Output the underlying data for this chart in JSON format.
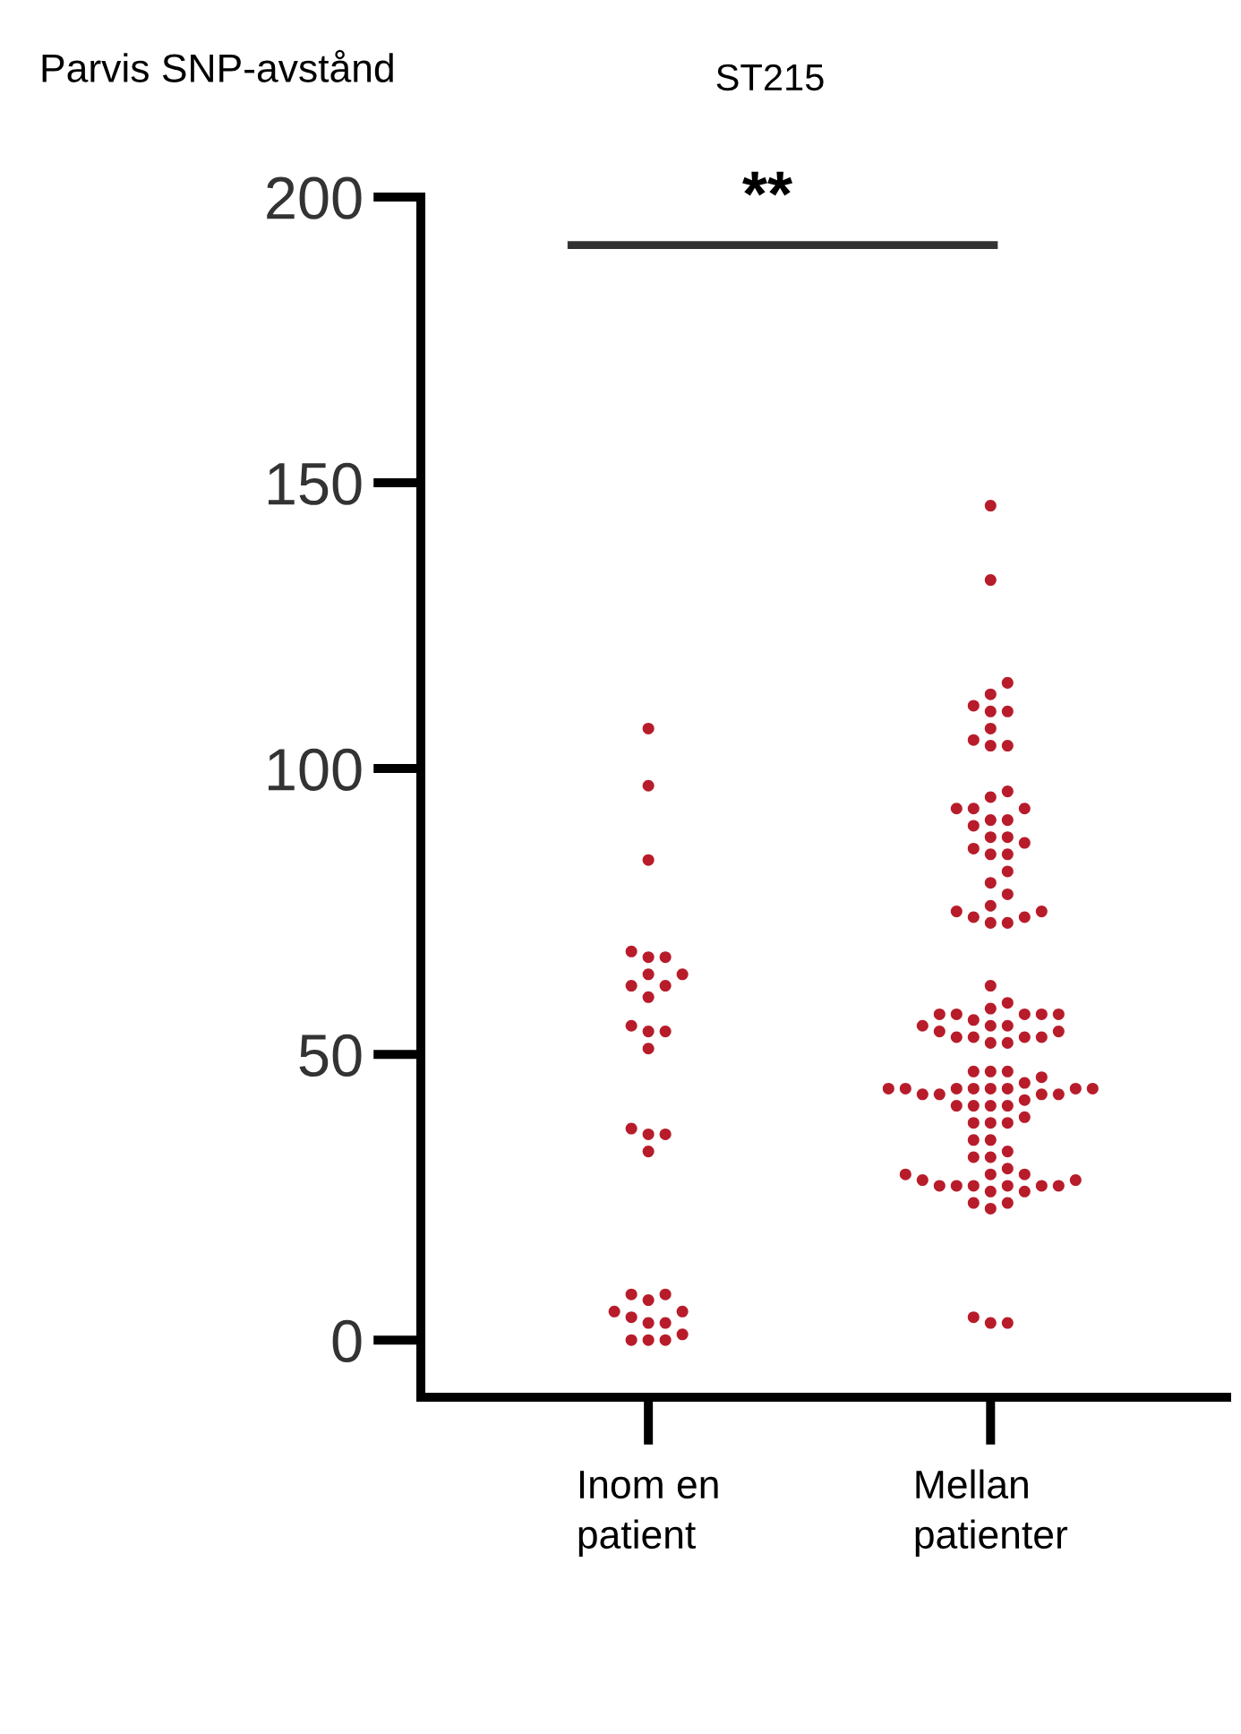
{
  "chart_data": {
    "type": "scatter",
    "title": "ST215",
    "ylabel": "Parvis SNP-avstånd",
    "categories": [
      "Inom en\npatient",
      "Mellan\npatienter"
    ],
    "series": [
      {
        "color": "#b81c2a",
        "x": [
          "Inom en\npatient",
          "Inom en\npatient",
          "Inom en\npatient",
          "Inom en\npatient",
          "Inom en\npatient",
          "Inom en\npatient",
          "Inom en\npatient",
          "Inom en\npatient",
          "Inom en\npatient",
          "Inom en\npatient",
          "Inom en\npatient",
          "Inom en\npatient",
          "Inom en\npatient",
          "Inom en\npatient",
          "Inom en\npatient",
          "Inom en\npatient",
          "Inom en\npatient",
          "Inom en\npatient",
          "Inom en\npatient",
          "Inom en\npatient",
          "Inom en\npatient",
          "Inom en\npatient",
          "Inom en\npatient",
          "Inom en\npatient",
          "Inom en\npatient",
          "Inom en\npatient",
          "Inom en\npatient",
          "Inom en\npatient",
          "Inom en\npatient",
          "Inom en\npatient",
          "Inom en\npatient"
        ],
        "values": [
          107,
          97,
          84,
          68,
          67,
          67,
          64,
          64,
          62,
          62,
          60,
          54,
          54,
          55,
          51,
          37,
          36,
          36,
          33,
          7,
          8,
          8,
          3,
          5,
          4,
          5,
          3,
          0,
          1,
          0,
          0
        ]
      },
      {
        "color": "#b81c2a",
        "x": [
          "Mellan\npatienter",
          "Mellan\npatienter",
          "Mellan\npatienter",
          "Mellan\npatienter",
          "Mellan\npatienter",
          "Mellan\npatienter",
          "Mellan\npatienter",
          "Mellan\npatienter",
          "Mellan\npatienter",
          "Mellan\npatienter",
          "Mellan\npatienter",
          "Mellan\npatienter",
          "Mellan\npatienter",
          "Mellan\npatienter",
          "Mellan\npatienter",
          "Mellan\npatienter",
          "Mellan\npatienter",
          "Mellan\npatienter",
          "Mellan\npatienter",
          "Mellan\npatienter",
          "Mellan\npatienter",
          "Mellan\npatienter",
          "Mellan\npatienter",
          "Mellan\npatienter",
          "Mellan\npatienter",
          "Mellan\npatienter",
          "Mellan\npatienter",
          "Mellan\npatienter",
          "Mellan\npatienter",
          "Mellan\npatienter",
          "Mellan\npatienter",
          "Mellan\npatienter",
          "Mellan\npatienter",
          "Mellan\npatienter",
          "Mellan\npatienter",
          "Mellan\npatienter",
          "Mellan\npatienter",
          "Mellan\npatienter",
          "Mellan\npatienter",
          "Mellan\npatienter",
          "Mellan\npatienter",
          "Mellan\npatienter",
          "Mellan\npatienter",
          "Mellan\npatienter",
          "Mellan\npatienter",
          "Mellan\npatienter",
          "Mellan\npatienter",
          "Mellan\npatienter",
          "Mellan\npatienter",
          "Mellan\npatienter",
          "Mellan\npatienter",
          "Mellan\npatienter",
          "Mellan\npatienter",
          "Mellan\npatienter",
          "Mellan\npatienter",
          "Mellan\npatienter",
          "Mellan\npatienter",
          "Mellan\npatienter",
          "Mellan\npatienter",
          "Mellan\npatienter",
          "Mellan\npatienter",
          "Mellan\npatienter",
          "Mellan\npatienter",
          "Mellan\npatienter",
          "Mellan\npatienter",
          "Mellan\npatienter",
          "Mellan\npatienter",
          "Mellan\npatienter",
          "Mellan\npatienter",
          "Mellan\npatienter",
          "Mellan\npatienter",
          "Mellan\npatienter",
          "Mellan\npatienter",
          "Mellan\npatienter",
          "Mellan\npatienter",
          "Mellan\npatienter",
          "Mellan\npatienter",
          "Mellan\npatienter",
          "Mellan\npatienter",
          "Mellan\npatienter",
          "Mellan\npatienter",
          "Mellan\npatienter",
          "Mellan\npatienter",
          "Mellan\npatienter",
          "Mellan\npatienter",
          "Mellan\npatienter",
          "Mellan\npatienter",
          "Mellan\npatienter",
          "Mellan\npatienter",
          "Mellan\npatienter",
          "Mellan\npatienter",
          "Mellan\npatienter",
          "Mellan\npatienter",
          "Mellan\npatienter",
          "Mellan\npatienter",
          "Mellan\npatienter",
          "Mellan\npatienter",
          "Mellan\npatienter",
          "Mellan\npatienter",
          "Mellan\npatienter",
          "Mellan\npatienter",
          "Mellan\npatienter",
          "Mellan\npatienter",
          "Mellan\npatienter",
          "Mellan\npatienter",
          "Mellan\npatienter"
        ],
        "values": [
          146,
          133,
          115,
          113,
          111,
          110,
          110,
          107,
          105,
          104,
          104,
          95,
          96,
          93,
          93,
          93,
          91,
          91,
          90,
          88,
          88,
          87,
          86,
          85,
          85,
          82,
          80,
          78,
          76,
          74,
          75,
          74,
          73,
          75,
          73,
          62,
          59,
          58,
          57,
          57,
          57,
          57,
          57,
          56,
          55,
          55,
          55,
          54,
          54,
          53,
          53,
          53,
          53,
          52,
          52,
          47,
          47,
          47,
          46,
          43,
          44,
          44,
          43,
          43,
          44,
          44,
          44,
          44,
          44,
          44,
          45,
          43,
          42,
          41,
          41,
          41,
          41,
          39,
          38,
          38,
          38,
          35,
          35,
          33,
          32,
          32,
          29,
          28,
          29,
          27,
          27,
          28,
          27,
          26,
          26,
          27,
          27,
          29,
          30,
          27,
          24,
          23,
          24,
          3,
          4,
          3
        ]
      }
    ],
    "ylim": [
      -10,
      200
    ],
    "yticks": [
      0,
      50,
      100,
      150,
      200
    ],
    "grid": false,
    "marker": "circle",
    "annotations": [
      "**"
    ]
  }
}
